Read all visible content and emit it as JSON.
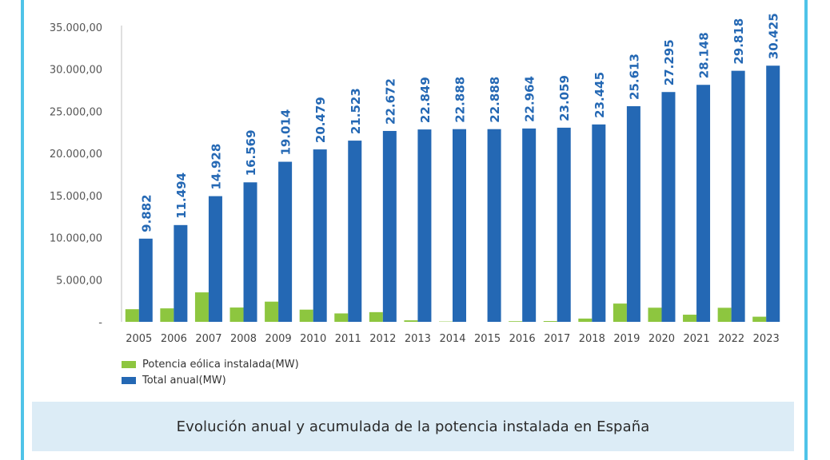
{
  "colors": {
    "annual": "#8dc63f",
    "total": "#2468b4",
    "frame": "#4fc3e8",
    "caption_bg": "#dcecf6"
  },
  "caption": "Evolución anual y acumulada de la potencia instalada en España",
  "chart_data": {
    "type": "bar",
    "categories": [
      "2005",
      "2006",
      "2007",
      "2008",
      "2009",
      "2010",
      "2011",
      "2012",
      "2013",
      "2014",
      "2015",
      "2016",
      "2017",
      "2018",
      "2019",
      "2020",
      "2021",
      "2022",
      "2023"
    ],
    "series": [
      {
        "name": "Potencia eólica instalada(MW)",
        "color": "#8dc63f",
        "values": [
          1500,
          1600,
          3500,
          1700,
          2400,
          1450,
          1000,
          1150,
          180,
          40,
          0,
          75,
          95,
          390,
          2170,
          1680,
          850,
          1670,
          610
        ]
      },
      {
        "name": "Total anual(MW)",
        "color": "#2468b4",
        "values": [
          9882,
          11494,
          14928,
          16569,
          19014,
          20479,
          21523,
          22672,
          22849,
          22888,
          22888,
          22964,
          23059,
          23445,
          25613,
          27295,
          28148,
          29818,
          30425
        ],
        "labels": [
          "9.882",
          "11.494",
          "14.928",
          "16.569",
          "19.014",
          "20.479",
          "21.523",
          "22.672",
          "22.849",
          "22.888",
          "22.888",
          "22.964",
          "23.059",
          "23.445",
          "25.613",
          "27.295",
          "28.148",
          "29.818",
          "30.425"
        ]
      }
    ],
    "yticks": [
      "-",
      "5.000,00",
      "10.000,00",
      "15.000,00",
      "20.000,00",
      "25.000,00",
      "30.000,00",
      "35.000,00"
    ],
    "ytick_values": [
      0,
      5000,
      10000,
      15000,
      20000,
      25000,
      30000,
      35000
    ],
    "ylim": [
      0,
      35000
    ],
    "grid": false,
    "legend_position": "bottom-left"
  }
}
